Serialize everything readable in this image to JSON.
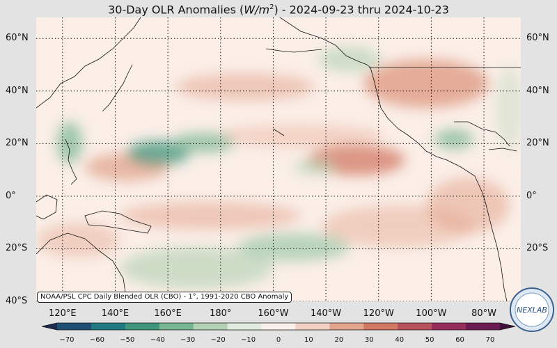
{
  "title": {
    "prefix": "30-Day OLR Anomalies (",
    "unit_var": "W/m",
    "unit_exp": "2",
    "suffix": ") - 2024-09-23 thru 2024-10-23"
  },
  "map": {
    "lat_labels": [
      "60°N",
      "40°N",
      "20°N",
      "0°",
      "20°S",
      "40°S"
    ],
    "lon_labels": [
      "120°E",
      "140°E",
      "160°E",
      "180°",
      "160°W",
      "140°W",
      "120°W",
      "100°W",
      "80°W"
    ],
    "lat_range": [
      -40,
      68
    ],
    "lon_range": [
      110,
      294
    ],
    "colors": {
      "ocean": "#fbefe8",
      "positive": "#d98a73",
      "negative": "#4f9c7a",
      "gridline": "#111111",
      "coast": "#111111"
    }
  },
  "source_note": "NOAA/PSL CPC Daily Blended OLR (CBO) - 1°, 1991-2020 CBO Anomaly",
  "colorbar": {
    "ticks": [
      "−70",
      "−60",
      "−50",
      "−40",
      "−30",
      "−20",
      "−10",
      "0",
      "10",
      "20",
      "30",
      "40",
      "50",
      "60",
      "70"
    ],
    "colors": [
      "#1d2a52",
      "#1f4f73",
      "#1f7a82",
      "#3f967c",
      "#78b592",
      "#b3d2b3",
      "#e2ece0",
      "#fbf1ec",
      "#f1d2c3",
      "#e3a58e",
      "#d27863",
      "#b9525c",
      "#962d5a",
      "#6b1b52",
      "#3e0f3a"
    ]
  },
  "logo": {
    "text": "NEXLAB"
  }
}
